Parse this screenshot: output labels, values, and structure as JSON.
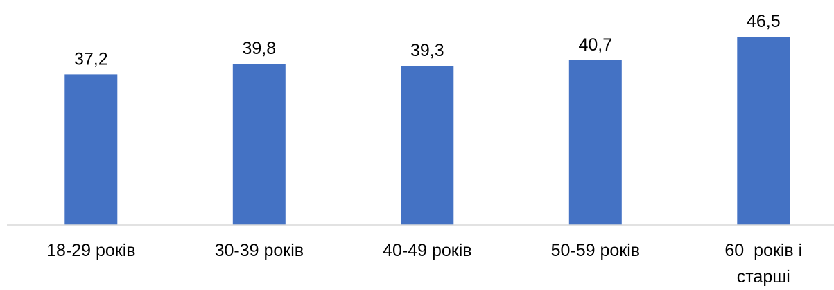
{
  "chart_data": {
    "type": "bar",
    "categories": [
      [
        "18-29 років"
      ],
      [
        "30-39 років"
      ],
      [
        "40-49 років"
      ],
      [
        "50-59 років"
      ],
      [
        "60  років і",
        "старші"
      ]
    ],
    "category_labels": [
      "18-29 років",
      "30-39 років",
      "40-49 років",
      "50-59 років",
      "60  років і старші"
    ],
    "values": [
      37.2,
      39.8,
      39.3,
      40.7,
      46.5
    ],
    "value_labels": [
      "37,2",
      "39,8",
      "39,3",
      "40,7",
      "46,5"
    ],
    "title": "",
    "xlabel": "",
    "ylabel": "",
    "ylim": [
      0,
      46.5
    ],
    "grid": false,
    "legend": "none",
    "colors": {
      "bar": "#4472C4",
      "axis": "#D9D9D9",
      "text": "#000000"
    }
  }
}
